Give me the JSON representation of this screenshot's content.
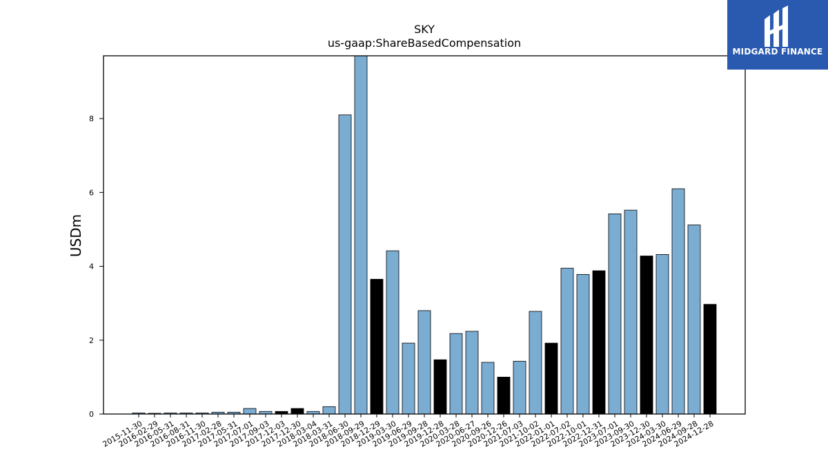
{
  "chart_data": {
    "type": "bar",
    "title": "SKY",
    "subtitle": "us-gaap:ShareBasedCompensation",
    "xlabel": "",
    "ylabel": "USDm",
    "ylim": [
      0,
      9.7
    ],
    "yticks": [
      0,
      2,
      4,
      6,
      8
    ],
    "grid": false,
    "colors": {
      "default": "#7bacd2",
      "highlight": "#000000",
      "edge": "#000000"
    },
    "categories": [
      "2015-11-30",
      "2016-02-29",
      "2016-05-31",
      "2016-08-31",
      "2016-11-30",
      "2017-02-28",
      "2017-05-31",
      "2017-07-01",
      "2017-09-03",
      "2017-12-03",
      "2017-12-30",
      "2018-03-04",
      "2018-03-31",
      "2018-06-30",
      "2018-09-29",
      "2018-12-29",
      "2019-03-30",
      "2019-06-29",
      "2019-09-28",
      "2019-12-28",
      "2020-03-28",
      "2020-06-27",
      "2020-09-26",
      "2020-12-26",
      "2021-07-03",
      "2021-10-02",
      "2022-01-01",
      "2022-07-02",
      "2022-10-01",
      "2022-12-31",
      "2023-07-01",
      "2023-09-30",
      "2023-12-30",
      "2024-03-30",
      "2024-06-29",
      "2024-09-28",
      "2024-12-28"
    ],
    "values": [
      0.03,
      0.02,
      0.03,
      0.03,
      0.03,
      0.05,
      0.05,
      0.15,
      0.07,
      0.07,
      0.15,
      0.07,
      0.2,
      8.1,
      9.7,
      3.65,
      4.42,
      1.92,
      2.8,
      1.47,
      2.18,
      2.24,
      1.4,
      1.0,
      1.43,
      2.78,
      1.92,
      3.95,
      3.78,
      3.88,
      5.42,
      5.52,
      4.28,
      4.32,
      6.1,
      5.12,
      2.97
    ],
    "highlight": [
      false,
      false,
      false,
      false,
      false,
      false,
      false,
      false,
      false,
      true,
      true,
      false,
      false,
      false,
      false,
      true,
      false,
      false,
      false,
      true,
      false,
      false,
      false,
      true,
      false,
      false,
      true,
      false,
      false,
      true,
      false,
      false,
      true,
      false,
      false,
      false,
      true
    ]
  },
  "logo": {
    "text": "MIDGARD FINANCE",
    "icon": "midgard-logo-icon"
  }
}
